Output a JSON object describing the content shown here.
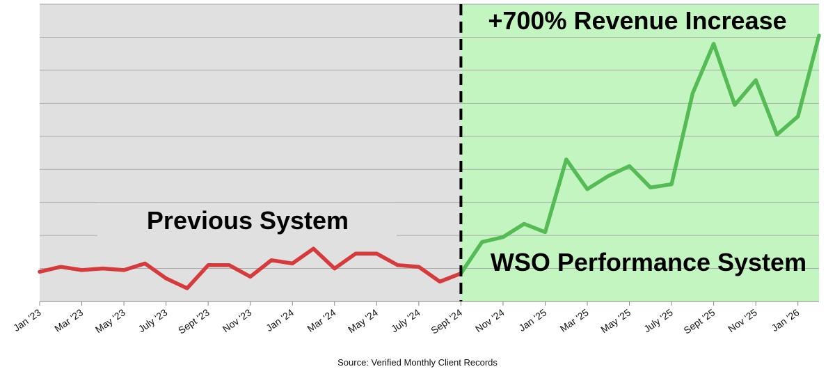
{
  "chart_data": {
    "type": "line",
    "title": "",
    "xlabel": "",
    "ylabel": "",
    "x_ticks": [
      "Jan '23",
      "Mar '23",
      "May '23",
      "July '23",
      "Sept '23",
      "Nov '23",
      "Jan '24",
      "Mar '24",
      "May '24",
      "July '24",
      "Sept '24",
      "Nov '24",
      "Jan '25",
      "Mar '25",
      "May '25",
      "July '25",
      "Sept '25",
      "Nov '25",
      "Jan '26"
    ],
    "ylim": [
      0,
      9
    ],
    "grid": true,
    "series": [
      {
        "name": "",
        "color": "#d63a3a",
        "x": [
          "2023-01",
          "2023-02",
          "2023-03",
          "2023-04",
          "2023-05",
          "2023-06",
          "2023-07",
          "2023-08",
          "2023-09",
          "2023-10",
          "2023-11",
          "2023-12",
          "2024-01",
          "2024-02",
          "2024-03",
          "2024-04",
          "2024-05",
          "2024-06",
          "2024-07",
          "2024-08",
          "2024-09"
        ],
        "y": [
          0.9,
          1.05,
          0.95,
          1.0,
          0.95,
          1.15,
          0.7,
          0.4,
          1.1,
          1.1,
          0.75,
          1.25,
          1.15,
          1.6,
          1.0,
          1.45,
          1.45,
          1.1,
          1.05,
          0.6,
          0.85
        ]
      },
      {
        "name": "",
        "color": "#55bb55",
        "x": [
          "2024-09",
          "2024-10",
          "2024-11",
          "2024-12",
          "2025-01",
          "2025-02",
          "2025-03",
          "2025-04",
          "2025-05",
          "2025-06",
          "2025-07",
          "2025-08",
          "2025-09",
          "2025-10",
          "2025-11",
          "2025-12",
          "2026-01",
          "2026-02"
        ],
        "y": [
          0.85,
          1.8,
          1.95,
          2.35,
          2.1,
          4.3,
          3.4,
          3.8,
          4.1,
          3.45,
          3.55,
          6.3,
          7.8,
          5.95,
          6.7,
          5.05,
          5.6,
          8.05
        ]
      }
    ],
    "regions": [
      {
        "label": "Previous System",
        "from": "2023-01",
        "to": "2024-09",
        "color": "#e0e0e0"
      },
      {
        "label": "WSO Performance System",
        "from": "2024-09",
        "to": "2026-02",
        "color": "#c3f5c0"
      }
    ],
    "divider_at": "2024-09",
    "annotations": [
      {
        "text": "+700% Revenue Increase"
      }
    ],
    "source_note": "Source: Verified Monthly Client Records"
  }
}
